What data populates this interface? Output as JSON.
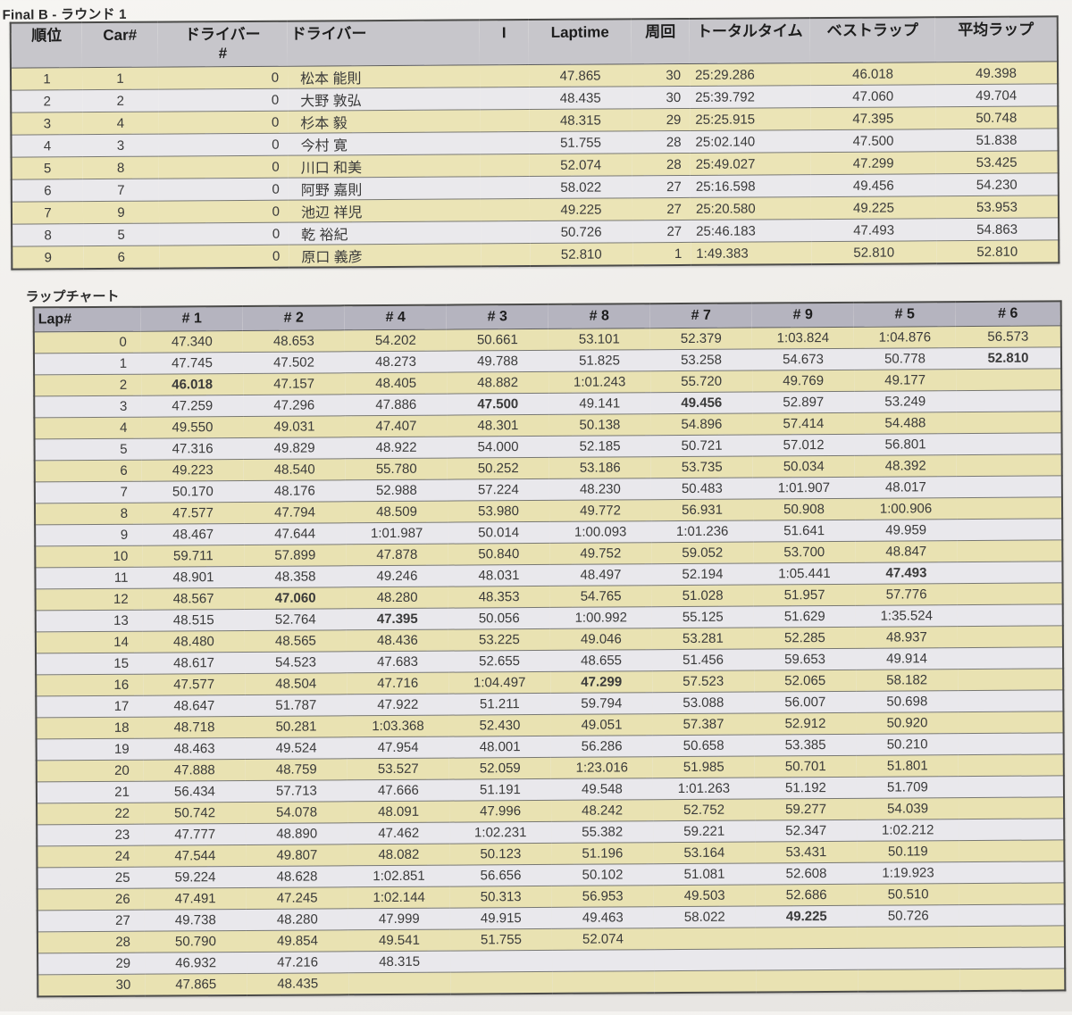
{
  "page": {
    "title": "Final B - ラウンド 1",
    "lap_chart_title": "ラップチャート"
  },
  "colors": {
    "row_yellow": "#ebe4b6",
    "row_white": "#eae9ec",
    "results_header_bg": "#c7c6cb",
    "lap_header_bg": "#b5b4bf",
    "paper_bg": "#efedea"
  },
  "results_table": {
    "headers": [
      "順位",
      "Car#",
      "ドライバー\n#",
      "ドライバー",
      "I",
      "Laptime",
      "周回",
      "トータルタイム",
      "ベストラップ",
      "平均ラップ"
    ],
    "rows": [
      [
        "1",
        "1",
        "0",
        "松本 能則",
        "",
        "47.865",
        "30",
        "25:29.286",
        "46.018",
        "49.398"
      ],
      [
        "2",
        "2",
        "0",
        "大野 敦弘",
        "",
        "48.435",
        "30",
        "25:39.792",
        "47.060",
        "49.704"
      ],
      [
        "3",
        "4",
        "0",
        "杉本 毅",
        "",
        "48.315",
        "29",
        "25:25.915",
        "47.395",
        "50.748"
      ],
      [
        "4",
        "3",
        "0",
        "今村 寛",
        "",
        "51.755",
        "28",
        "25:02.140",
        "47.500",
        "51.838"
      ],
      [
        "5",
        "8",
        "0",
        "川口 和美",
        "",
        "52.074",
        "28",
        "25:49.027",
        "47.299",
        "53.425"
      ],
      [
        "6",
        "7",
        "0",
        "阿野 嘉則",
        "",
        "58.022",
        "27",
        "25:16.598",
        "49.456",
        "54.230"
      ],
      [
        "7",
        "9",
        "0",
        "池辺 祥児",
        "",
        "49.225",
        "27",
        "25:20.580",
        "49.225",
        "53.953"
      ],
      [
        "8",
        "5",
        "0",
        "乾 裕紀",
        "",
        "50.726",
        "27",
        "25:46.183",
        "47.493",
        "54.863"
      ],
      [
        "9",
        "6",
        "0",
        "原口 義彦",
        "",
        "52.810",
        "1",
        "1:49.383",
        "52.810",
        "52.810"
      ]
    ]
  },
  "lap_chart": {
    "headers": [
      "Lap#",
      "# 1",
      "# 2",
      "# 4",
      "# 3",
      "# 8",
      "# 7",
      "# 9",
      "# 5",
      "# 6"
    ],
    "rows": [
      {
        "lap": "0",
        "times": [
          "47.340",
          "48.653",
          "54.202",
          "50.661",
          "53.101",
          "52.379",
          "1:03.824",
          "1:04.876",
          "56.573"
        ],
        "bold": []
      },
      {
        "lap": "1",
        "times": [
          "47.745",
          "47.502",
          "48.273",
          "49.788",
          "51.825",
          "53.258",
          "54.673",
          "50.778",
          "52.810"
        ],
        "bold": [
          8
        ]
      },
      {
        "lap": "2",
        "times": [
          "46.018",
          "47.157",
          "48.405",
          "48.882",
          "1:01.243",
          "55.720",
          "49.769",
          "49.177",
          ""
        ],
        "bold": [
          0
        ]
      },
      {
        "lap": "3",
        "times": [
          "47.259",
          "47.296",
          "47.886",
          "47.500",
          "49.141",
          "49.456",
          "52.897",
          "53.249",
          ""
        ],
        "bold": [
          3,
          5
        ]
      },
      {
        "lap": "4",
        "times": [
          "49.550",
          "49.031",
          "47.407",
          "48.301",
          "50.138",
          "54.896",
          "57.414",
          "54.488",
          ""
        ],
        "bold": []
      },
      {
        "lap": "5",
        "times": [
          "47.316",
          "49.829",
          "48.922",
          "54.000",
          "52.185",
          "50.721",
          "57.012",
          "56.801",
          ""
        ],
        "bold": []
      },
      {
        "lap": "6",
        "times": [
          "49.223",
          "48.540",
          "55.780",
          "50.252",
          "53.186",
          "53.735",
          "50.034",
          "48.392",
          ""
        ],
        "bold": []
      },
      {
        "lap": "7",
        "times": [
          "50.170",
          "48.176",
          "52.988",
          "57.224",
          "48.230",
          "50.483",
          "1:01.907",
          "48.017",
          ""
        ],
        "bold": []
      },
      {
        "lap": "8",
        "times": [
          "47.577",
          "47.794",
          "48.509",
          "53.980",
          "49.772",
          "56.931",
          "50.908",
          "1:00.906",
          ""
        ],
        "bold": []
      },
      {
        "lap": "9",
        "times": [
          "48.467",
          "47.644",
          "1:01.987",
          "50.014",
          "1:00.093",
          "1:01.236",
          "51.641",
          "49.959",
          ""
        ],
        "bold": []
      },
      {
        "lap": "10",
        "times": [
          "59.711",
          "57.899",
          "47.878",
          "50.840",
          "49.752",
          "59.052",
          "53.700",
          "48.847",
          ""
        ],
        "bold": []
      },
      {
        "lap": "11",
        "times": [
          "48.901",
          "48.358",
          "49.246",
          "48.031",
          "48.497",
          "52.194",
          "1:05.441",
          "47.493",
          ""
        ],
        "bold": [
          7
        ]
      },
      {
        "lap": "12",
        "times": [
          "48.567",
          "47.060",
          "48.280",
          "48.353",
          "54.765",
          "51.028",
          "51.957",
          "57.776",
          ""
        ],
        "bold": [
          1
        ]
      },
      {
        "lap": "13",
        "times": [
          "48.515",
          "52.764",
          "47.395",
          "50.056",
          "1:00.992",
          "55.125",
          "51.629",
          "1:35.524",
          ""
        ],
        "bold": [
          2
        ]
      },
      {
        "lap": "14",
        "times": [
          "48.480",
          "48.565",
          "48.436",
          "53.225",
          "49.046",
          "53.281",
          "52.285",
          "48.937",
          ""
        ],
        "bold": []
      },
      {
        "lap": "15",
        "times": [
          "48.617",
          "54.523",
          "47.683",
          "52.655",
          "48.655",
          "51.456",
          "59.653",
          "49.914",
          ""
        ],
        "bold": []
      },
      {
        "lap": "16",
        "times": [
          "47.577",
          "48.504",
          "47.716",
          "1:04.497",
          "47.299",
          "57.523",
          "52.065",
          "58.182",
          ""
        ],
        "bold": [
          4
        ]
      },
      {
        "lap": "17",
        "times": [
          "48.647",
          "51.787",
          "47.922",
          "51.211",
          "59.794",
          "53.088",
          "56.007",
          "50.698",
          ""
        ],
        "bold": []
      },
      {
        "lap": "18",
        "times": [
          "48.718",
          "50.281",
          "1:03.368",
          "52.430",
          "49.051",
          "57.387",
          "52.912",
          "50.920",
          ""
        ],
        "bold": []
      },
      {
        "lap": "19",
        "times": [
          "48.463",
          "49.524",
          "47.954",
          "48.001",
          "56.286",
          "50.658",
          "53.385",
          "50.210",
          ""
        ],
        "bold": []
      },
      {
        "lap": "20",
        "times": [
          "47.888",
          "48.759",
          "53.527",
          "52.059",
          "1:23.016",
          "51.985",
          "50.701",
          "51.801",
          ""
        ],
        "bold": []
      },
      {
        "lap": "21",
        "times": [
          "56.434",
          "57.713",
          "47.666",
          "51.191",
          "49.548",
          "1:01.263",
          "51.192",
          "51.709",
          ""
        ],
        "bold": []
      },
      {
        "lap": "22",
        "times": [
          "50.742",
          "54.078",
          "48.091",
          "47.996",
          "48.242",
          "52.752",
          "59.277",
          "54.039",
          ""
        ],
        "bold": []
      },
      {
        "lap": "23",
        "times": [
          "47.777",
          "48.890",
          "47.462",
          "1:02.231",
          "55.382",
          "59.221",
          "52.347",
          "1:02.212",
          ""
        ],
        "bold": []
      },
      {
        "lap": "24",
        "times": [
          "47.544",
          "49.807",
          "48.082",
          "50.123",
          "51.196",
          "53.164",
          "53.431",
          "50.119",
          ""
        ],
        "bold": []
      },
      {
        "lap": "25",
        "times": [
          "59.224",
          "48.628",
          "1:02.851",
          "56.656",
          "50.102",
          "51.081",
          "52.608",
          "1:19.923",
          ""
        ],
        "bold": []
      },
      {
        "lap": "26",
        "times": [
          "47.491",
          "47.245",
          "1:02.144",
          "50.313",
          "56.953",
          "49.503",
          "52.686",
          "50.510",
          ""
        ],
        "bold": []
      },
      {
        "lap": "27",
        "times": [
          "49.738",
          "48.280",
          "47.999",
          "49.915",
          "49.463",
          "58.022",
          "49.225",
          "50.726",
          ""
        ],
        "bold": [
          6
        ]
      },
      {
        "lap": "28",
        "times": [
          "50.790",
          "49.854",
          "49.541",
          "51.755",
          "52.074",
          "",
          "",
          "",
          ""
        ],
        "bold": []
      },
      {
        "lap": "29",
        "times": [
          "46.932",
          "47.216",
          "48.315",
          "",
          "",
          "",
          "",
          "",
          ""
        ],
        "bold": []
      },
      {
        "lap": "30",
        "times": [
          "47.865",
          "48.435",
          "",
          "",
          "",
          "",
          "",
          "",
          ""
        ],
        "bold": []
      }
    ]
  }
}
